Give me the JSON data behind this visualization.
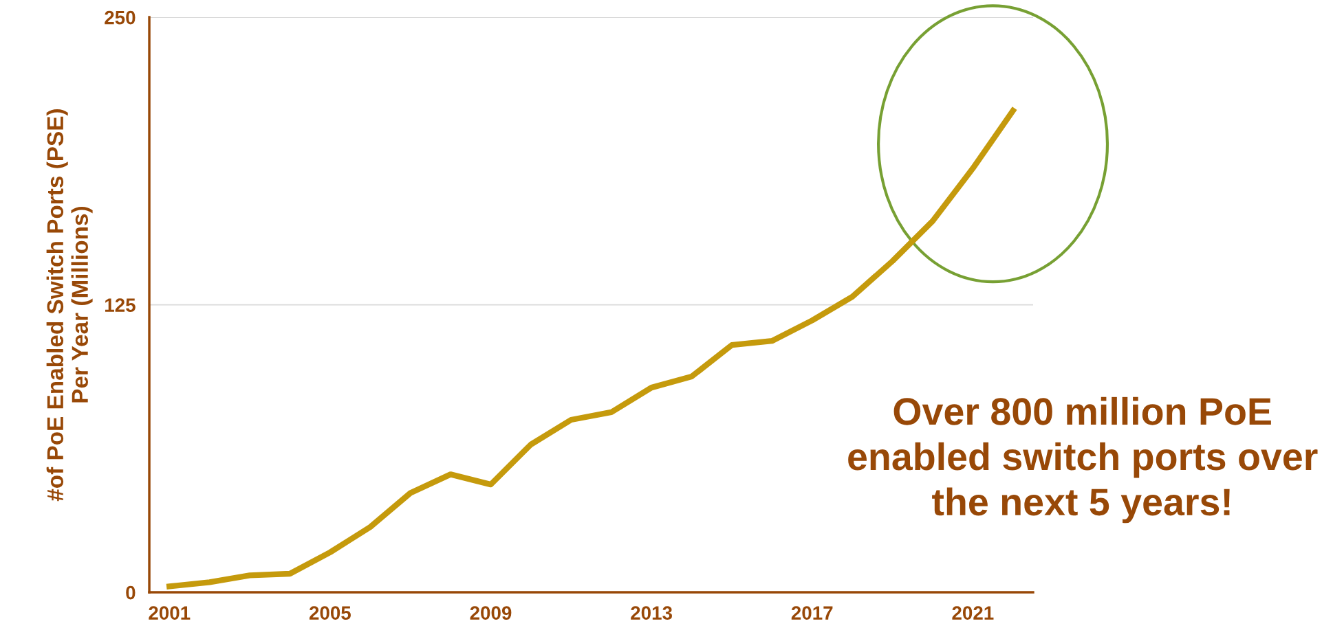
{
  "chart_data": {
    "type": "line",
    "ylabel": "#of PoE Enabled Switch Ports (PSE)\nPer Year (Millions)",
    "x": [
      2001,
      2002,
      2003,
      2004,
      2005,
      2006,
      2007,
      2008,
      2009,
      2010,
      2011,
      2012,
      2013,
      2014,
      2015,
      2016,
      2017,
      2018,
      2019,
      2020,
      2021,
      2022
    ],
    "series": [
      {
        "color": "#c59a0c",
        "values": [
          2.6,
          4.4,
          7.4,
          8.1,
          17.4,
          28.4,
          43.2,
          51.3,
          46.9,
          64.3,
          75.0,
          78.3,
          89.0,
          93.8,
          107.5,
          109.3,
          118.2,
          128.5,
          144.0,
          161.4,
          184.3,
          209.4
        ]
      }
    ],
    "xlim": [
      2000.5,
      2022.5
    ],
    "xticks": [
      2001,
      2005,
      2009,
      2013,
      2017,
      2021
    ],
    "ylim": [
      0,
      250
    ],
    "yticks": [
      0,
      125,
      250
    ],
    "grid": "y",
    "marker": "none",
    "line_style": "solid",
    "legend": false,
    "annotations": [
      "Over 800 million PoE enabled switch ports over the next 5 years!"
    ]
  }
}
